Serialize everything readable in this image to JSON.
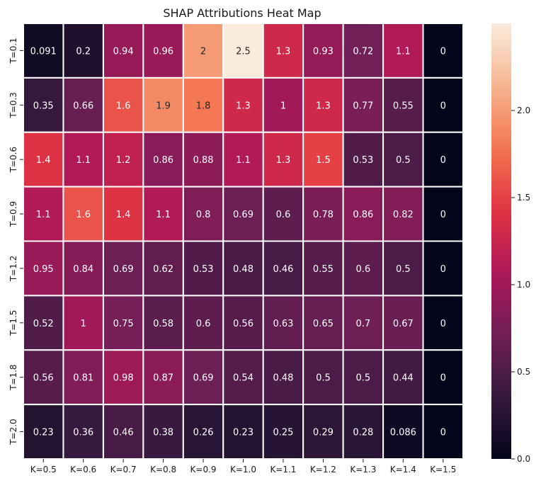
{
  "chart_data": {
    "type": "heatmap",
    "title": "SHAP Attributions Heat Map",
    "xlabel": "",
    "ylabel": "",
    "x_categories": [
      "K=0.5",
      "K=0.6",
      "K=0.7",
      "K=0.8",
      "K=0.9",
      "K=1.0",
      "K=1.1",
      "K=1.2",
      "K=1.3",
      "K=1.4",
      "K=1.5"
    ],
    "y_categories": [
      "T=0.1",
      "T=0.3",
      "T=0.6",
      "T=0.9",
      "T=1.2",
      "T=1.5",
      "T=1.8",
      "T=2.0"
    ],
    "values": [
      [
        0.091,
        0.2,
        0.94,
        0.96,
        2,
        2.5,
        1.3,
        0.93,
        0.72,
        1.1,
        0
      ],
      [
        0.35,
        0.66,
        1.6,
        1.9,
        1.8,
        1.3,
        1,
        1.3,
        0.77,
        0.55,
        0
      ],
      [
        1.4,
        1.1,
        1.2,
        0.86,
        0.88,
        1.1,
        1.3,
        1.5,
        0.53,
        0.5,
        0
      ],
      [
        1.1,
        1.6,
        1.4,
        1.1,
        0.8,
        0.69,
        0.6,
        0.78,
        0.86,
        0.82,
        0
      ],
      [
        0.95,
        0.84,
        0.69,
        0.62,
        0.53,
        0.48,
        0.46,
        0.55,
        0.6,
        0.5,
        0
      ],
      [
        0.52,
        1,
        0.75,
        0.58,
        0.6,
        0.56,
        0.63,
        0.65,
        0.7,
        0.67,
        0
      ],
      [
        0.56,
        0.81,
        0.98,
        0.87,
        0.69,
        0.54,
        0.48,
        0.5,
        0.5,
        0.44,
        0
      ],
      [
        0.23,
        0.36,
        0.46,
        0.38,
        0.26,
        0.23,
        0.25,
        0.29,
        0.28,
        0.086,
        0
      ]
    ],
    "value_labels": [
      [
        "0.091",
        "0.2",
        "0.94",
        "0.96",
        "2",
        "2.5",
        "1.3",
        "0.93",
        "0.72",
        "1.1",
        "0"
      ],
      [
        "0.35",
        "0.66",
        "1.6",
        "1.9",
        "1.8",
        "1.3",
        "1",
        "1.3",
        "0.77",
        "0.55",
        "0"
      ],
      [
        "1.4",
        "1.1",
        "1.2",
        "0.86",
        "0.88",
        "1.1",
        "1.3",
        "1.5",
        "0.53",
        "0.5",
        "0"
      ],
      [
        "1.1",
        "1.6",
        "1.4",
        "1.1",
        "0.8",
        "0.69",
        "0.6",
        "0.78",
        "0.86",
        "0.82",
        "0"
      ],
      [
        "0.95",
        "0.84",
        "0.69",
        "0.62",
        "0.53",
        "0.48",
        "0.46",
        "0.55",
        "0.6",
        "0.5",
        "0"
      ],
      [
        "0.52",
        "1",
        "0.75",
        "0.58",
        "0.6",
        "0.56",
        "0.63",
        "0.65",
        "0.7",
        "0.67",
        "0"
      ],
      [
        "0.56",
        "0.81",
        "0.98",
        "0.87",
        "0.69",
        "0.54",
        "0.48",
        "0.5",
        "0.5",
        "0.44",
        "0"
      ],
      [
        "0.23",
        "0.36",
        "0.46",
        "0.38",
        "0.26",
        "0.23",
        "0.25",
        "0.29",
        "0.28",
        "0.086",
        "0"
      ]
    ],
    "colorbar": {
      "vmin": 0,
      "vmax": 2.5,
      "ticks": [
        0,
        0.5,
        1,
        1.5,
        2
      ],
      "tick_labels": [
        "0.0",
        "0.5",
        "1.0",
        "1.5",
        "2.0"
      ]
    },
    "colormap": "rocket",
    "colormap_stops": [
      "#03051a",
      "#36193e",
      "#701f57",
      "#ad1759",
      "#e13342",
      "#f37651",
      "#f6b48f",
      "#faebdd"
    ],
    "grid": true,
    "cell_border_color": "#ffffff",
    "text_dark_color": "#262626",
    "text_light_color": "#ffffff"
  }
}
